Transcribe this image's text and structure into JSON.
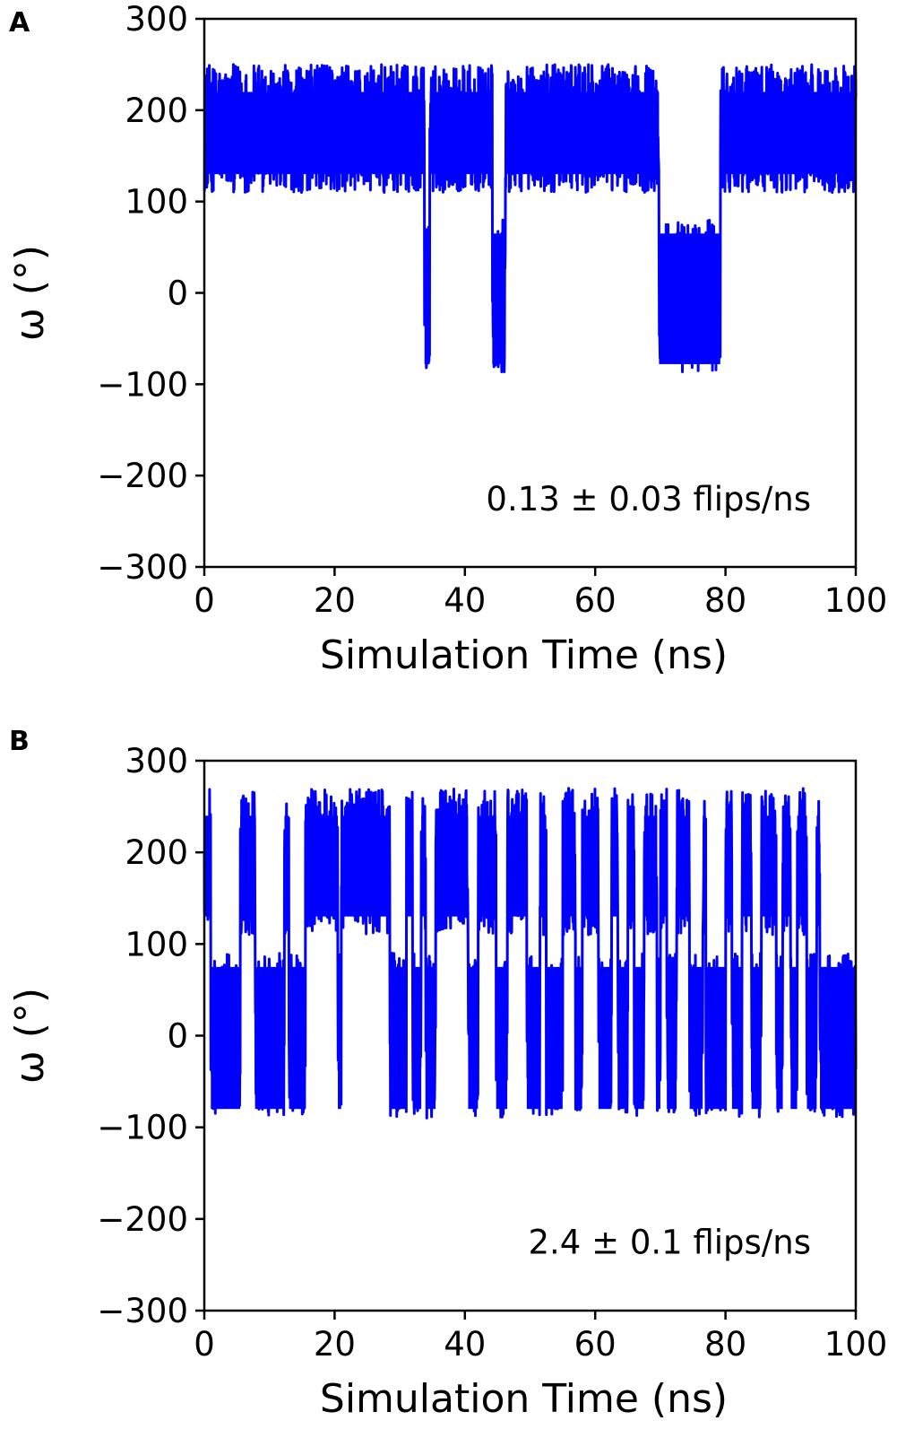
{
  "figure": {
    "panels": [
      {
        "letter": "A",
        "annotation": "0.13 ± 0.03 flips/ns"
      },
      {
        "letter": "B",
        "annotation": "2.4 ± 0.1 flips/ns"
      }
    ]
  },
  "chart_data": [
    {
      "type": "line",
      "panel": "A",
      "title": "",
      "xlabel": "Simulation Time (ns)",
      "ylabel": "ω (°)",
      "xlim": [
        0,
        100
      ],
      "ylim": [
        -300,
        300
      ],
      "xticks": [
        0,
        20,
        40,
        60,
        80,
        100
      ],
      "yticks": [
        -300,
        -200,
        -100,
        0,
        100,
        200,
        300
      ],
      "xtick_labels": [
        "0",
        "20",
        "40",
        "60",
        "80",
        "100"
      ],
      "ytick_labels": [
        "−300",
        "−200",
        "−100",
        "0",
        "100",
        "200",
        "300"
      ],
      "grid": false,
      "color": "#0000ff",
      "annotation": "0.13 ± 0.03 flips/ns",
      "states": {
        "high": {
          "min": 110,
          "max": 250
        },
        "low": {
          "min": -88,
          "max": 80
        }
      },
      "low_state_intervals_ns": [
        [
          33.8,
          34.6
        ],
        [
          44.2,
          46.2
        ],
        [
          69.8,
          79.2
        ]
      ],
      "approx_range_high": [
        95,
        270
      ],
      "approx_range_low": [
        -90,
        85
      ]
    },
    {
      "type": "line",
      "panel": "B",
      "title": "",
      "xlabel": "Simulation Time (ns)",
      "ylabel": "ω (°)",
      "xlim": [
        0,
        100
      ],
      "ylim": [
        -300,
        300
      ],
      "xticks": [
        0,
        20,
        40,
        60,
        80,
        100
      ],
      "yticks": [
        -300,
        -200,
        -100,
        0,
        100,
        200,
        300
      ],
      "xtick_labels": [
        "0",
        "20",
        "40",
        "60",
        "80",
        "100"
      ],
      "ytick_labels": [
        "−300",
        "−200",
        "−100",
        "0",
        "100",
        "200",
        "300"
      ],
      "grid": false,
      "color": "#0000ff",
      "annotation": "2.4 ± 0.1 flips/ns",
      "states": {
        "high": {
          "min": 110,
          "max": 270
        },
        "low": {
          "min": -90,
          "max": 90
        }
      },
      "low_state_intervals_ns": [
        [
          1.0,
          5.5
        ],
        [
          7.8,
          12.3
        ],
        [
          13.0,
          15.5
        ],
        [
          20.5,
          21.0
        ],
        [
          28.5,
          31.0
        ],
        [
          32.0,
          33.3
        ],
        [
          34.0,
          35.5
        ],
        [
          40.5,
          42.0
        ],
        [
          44.8,
          46.5
        ],
        [
          49.5,
          51.5
        ],
        [
          52.5,
          55.0
        ],
        [
          57.0,
          58.0
        ],
        [
          60.5,
          62.5
        ],
        [
          63.5,
          65.0
        ],
        [
          66.0,
          67.5
        ],
        [
          69.5,
          70.0
        ],
        [
          71.0,
          72.5
        ],
        [
          74.5,
          76.5
        ],
        [
          77.0,
          80.0
        ],
        [
          81.0,
          82.5
        ],
        [
          84.0,
          85.5
        ],
        [
          87.8,
          88.8
        ],
        [
          90.0,
          91.0
        ],
        [
          92.5,
          94.0
        ],
        [
          94.5,
          100.0
        ]
      ],
      "approx_range_high": [
        100,
        270
      ],
      "approx_range_low": [
        -90,
        95
      ]
    }
  ]
}
